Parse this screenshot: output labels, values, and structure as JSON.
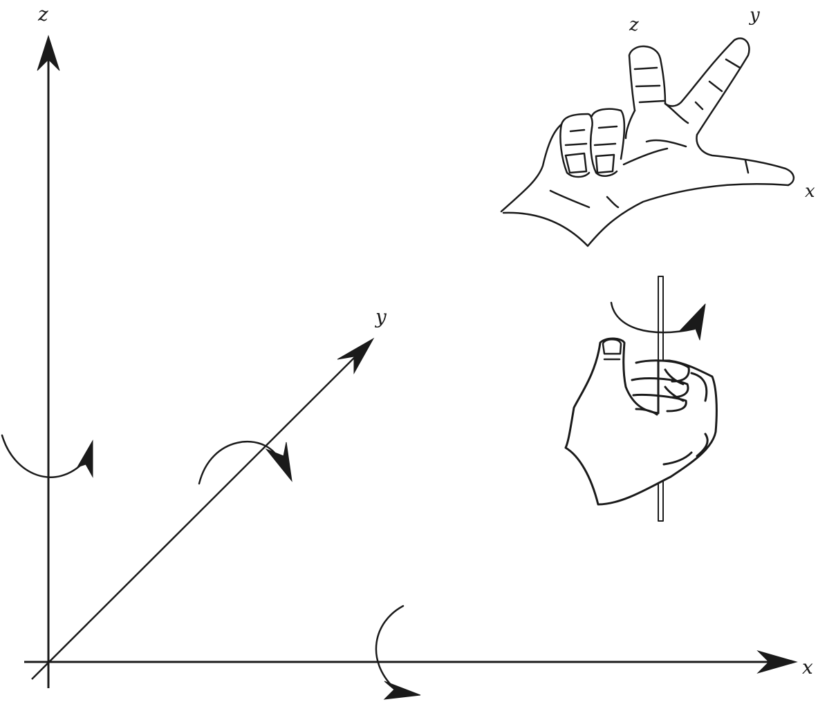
{
  "axes": {
    "x_label": "x",
    "y_label": "y",
    "z_label": "z"
  },
  "right_hand_rule": {
    "x_label": "x",
    "y_label": "y",
    "z_label": "z"
  },
  "colors": {
    "ink": "#1a1a1a",
    "background": "#ffffff"
  },
  "icons": {
    "hand_fingers": "right-hand-coordinate-icon",
    "hand_grip": "right-hand-grip-rule-icon"
  }
}
